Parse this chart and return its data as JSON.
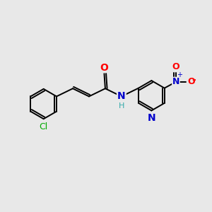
{
  "background_color": "#e8e8e8",
  "bond_color": "#000000",
  "atom_colors": {
    "O": "#ff0000",
    "N": "#0000cc",
    "Cl": "#00aa00",
    "C": "#000000",
    "H": "#33aaaa"
  },
  "figsize": [
    3.0,
    3.0
  ],
  "dpi": 100,
  "lw": 1.4
}
